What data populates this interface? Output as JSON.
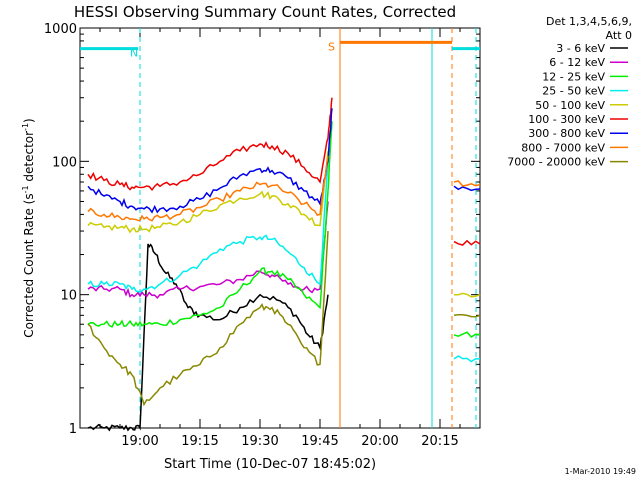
{
  "chart_data": {
    "type": "line",
    "title": "HESSI Observing Summary Count Rates, Corrected",
    "xlabel": "Start Time (10-Dec-07 18:45:02)",
    "ylabel_main": "Corrected Count Rate (s",
    "ylabel_sup1": "-1",
    "ylabel_mid": " detector",
    "ylabel_sup2": "-1",
    "ylabel_end": ")",
    "yscale": "log",
    "ylim": [
      1,
      1000
    ],
    "xlim_minutes": [
      0,
      100
    ],
    "x_ticks": [
      {
        "min": 15,
        "label": "19:00"
      },
      {
        "min": 30,
        "label": "19:15"
      },
      {
        "min": 45,
        "label": "19:30"
      },
      {
        "min": 60,
        "label": "19:45"
      },
      {
        "min": 75,
        "label": "20:00"
      },
      {
        "min": 90,
        "label": "20:15"
      }
    ],
    "y_ticks": [
      {
        "value": 1,
        "label": "1"
      },
      {
        "value": 10,
        "label": "10"
      },
      {
        "value": 100,
        "label": "100"
      },
      {
        "value": 1000,
        "label": "1000"
      }
    ],
    "legend_header": [
      "Det 1,3,4,5,6,9,",
      "Att 0"
    ],
    "legend_position": "right",
    "series": [
      {
        "name": "3 - 6 keV",
        "color": "#000000",
        "x": [
          2,
          6,
          10,
          13,
          15,
          17,
          19,
          21,
          24,
          27,
          30,
          35,
          40,
          45,
          50,
          54,
          57,
          60,
          62
        ],
        "values": [
          1,
          1,
          1,
          1,
          1,
          24,
          20,
          15,
          12,
          8,
          7,
          6.5,
          8,
          10,
          9,
          7,
          5,
          4,
          10
        ]
      },
      {
        "name": "6 - 12 keV",
        "color": "#cc00cc",
        "x": [
          2,
          6,
          10,
          13,
          16,
          20,
          25,
          30,
          35,
          40,
          45,
          48,
          52,
          56,
          60,
          62
        ],
        "values": [
          11,
          11,
          11,
          10,
          10,
          10,
          11,
          11.5,
          12,
          13,
          15,
          14,
          12,
          11,
          11,
          50
        ]
      },
      {
        "name": "12 - 25 keV",
        "color": "#00ee00",
        "x": [
          2,
          6,
          10,
          13,
          16,
          20,
          25,
          30,
          35,
          40,
          45,
          48,
          52,
          56,
          60,
          62,
          63
        ],
        "values": [
          6,
          6,
          6,
          6,
          6,
          6,
          6.5,
          7,
          8,
          11,
          15,
          15,
          13,
          10,
          8,
          60,
          200
        ]
      },
      {
        "name": "25 - 50 keV",
        "color": "#00eeee",
        "x": [
          2,
          6,
          10,
          13,
          16,
          20,
          25,
          30,
          35,
          40,
          45,
          48,
          52,
          56,
          60,
          62
        ],
        "values": [
          12,
          12,
          12,
          11,
          11,
          12,
          14,
          17,
          22,
          25,
          27,
          26,
          21,
          16,
          12,
          100
        ]
      },
      {
        "name": "50 - 100 keV",
        "color": "#cccc00",
        "x": [
          2,
          6,
          10,
          13,
          16,
          20,
          25,
          30,
          35,
          40,
          45,
          48,
          52,
          56,
          60,
          62
        ],
        "values": [
          33,
          32,
          32,
          31,
          31,
          32,
          35,
          40,
          47,
          53,
          57,
          55,
          48,
          40,
          33,
          120
        ]
      },
      {
        "name": "100 - 300 keV",
        "color": "#ee0000",
        "x": [
          2,
          6,
          10,
          13,
          16,
          20,
          25,
          30,
          35,
          40,
          45,
          48,
          52,
          56,
          60,
          62,
          63
        ],
        "values": [
          80,
          72,
          67,
          64,
          64,
          65,
          70,
          80,
          100,
          120,
          135,
          130,
          115,
          90,
          70,
          150,
          300
        ]
      },
      {
        "name": "300 - 800 keV",
        "color": "#0000ee",
        "x": [
          2,
          6,
          10,
          13,
          16,
          20,
          25,
          30,
          35,
          40,
          45,
          48,
          52,
          56,
          60,
          62,
          63
        ],
        "values": [
          65,
          55,
          50,
          46,
          44,
          44,
          46,
          52,
          63,
          78,
          88,
          85,
          75,
          60,
          48,
          100,
          250
        ]
      },
      {
        "name": "800 - 7000 keV",
        "color": "#ff7700",
        "x": [
          2,
          6,
          10,
          13,
          16,
          20,
          25,
          30,
          35,
          40,
          45,
          48,
          52,
          56,
          60,
          62
        ],
        "values": [
          42,
          40,
          38,
          37,
          37,
          38,
          40,
          45,
          52,
          60,
          67,
          66,
          58,
          48,
          40,
          110
        ]
      },
      {
        "name": "7000 - 20000 keV",
        "color": "#888800",
        "x": [
          2,
          6,
          10,
          13,
          16,
          20,
          25,
          30,
          35,
          40,
          45,
          48,
          52,
          56,
          60,
          62
        ],
        "values": [
          6,
          4,
          3,
          2.5,
          1.5,
          2,
          2.5,
          3,
          4,
          6,
          8,
          8,
          6,
          4,
          3,
          30
        ]
      }
    ],
    "tail_series": [
      {
        "name": "100 - 300 keV",
        "x": [
          93.5,
          100
        ],
        "values": [
          25,
          24
        ]
      },
      {
        "name": "300 - 800 keV",
        "x": [
          93.5,
          100
        ],
        "values": [
          65,
          62
        ]
      },
      {
        "name": "800 - 7000 keV",
        "x": [
          93.5,
          100
        ],
        "values": [
          70,
          67
        ]
      },
      {
        "name": "50 - 100 keV",
        "x": [
          93.5,
          100
        ],
        "values": [
          10,
          10
        ]
      },
      {
        "name": "7000 - 20000 keV",
        "x": [
          93.5,
          100
        ],
        "values": [
          7,
          7
        ]
      },
      {
        "name": "12 - 25 keV",
        "x": [
          93.5,
          100
        ],
        "values": [
          5,
          5
        ]
      },
      {
        "name": "25 - 50 keV",
        "x": [
          93.5,
          100
        ],
        "values": [
          3.3,
          3.3
        ]
      }
    ],
    "flags": [
      {
        "label": "N",
        "color": "#00dddd",
        "x_start": 0,
        "x_end": 14.5,
        "value": 700
      },
      {
        "label": "S",
        "color": "#ff7700",
        "x_start": 65,
        "x_end": 93,
        "value": 780
      },
      {
        "label": "",
        "color": "#00dddd",
        "x_start": 93,
        "x_end": 100,
        "value": 700
      }
    ],
    "vertical_lines": [
      {
        "x": 15,
        "color": "#00dddd",
        "style": "dashed"
      },
      {
        "x": 65,
        "color": "#ff7700",
        "style": "solid"
      },
      {
        "x": 88,
        "color": "#00dddd",
        "style": "solid"
      },
      {
        "x": 93,
        "color": "#ff7700",
        "style": "dashed"
      },
      {
        "x": 99,
        "color": "#00dddd",
        "style": "dashed"
      }
    ],
    "footer_stamp": "1-Mar-2010 19:49"
  }
}
